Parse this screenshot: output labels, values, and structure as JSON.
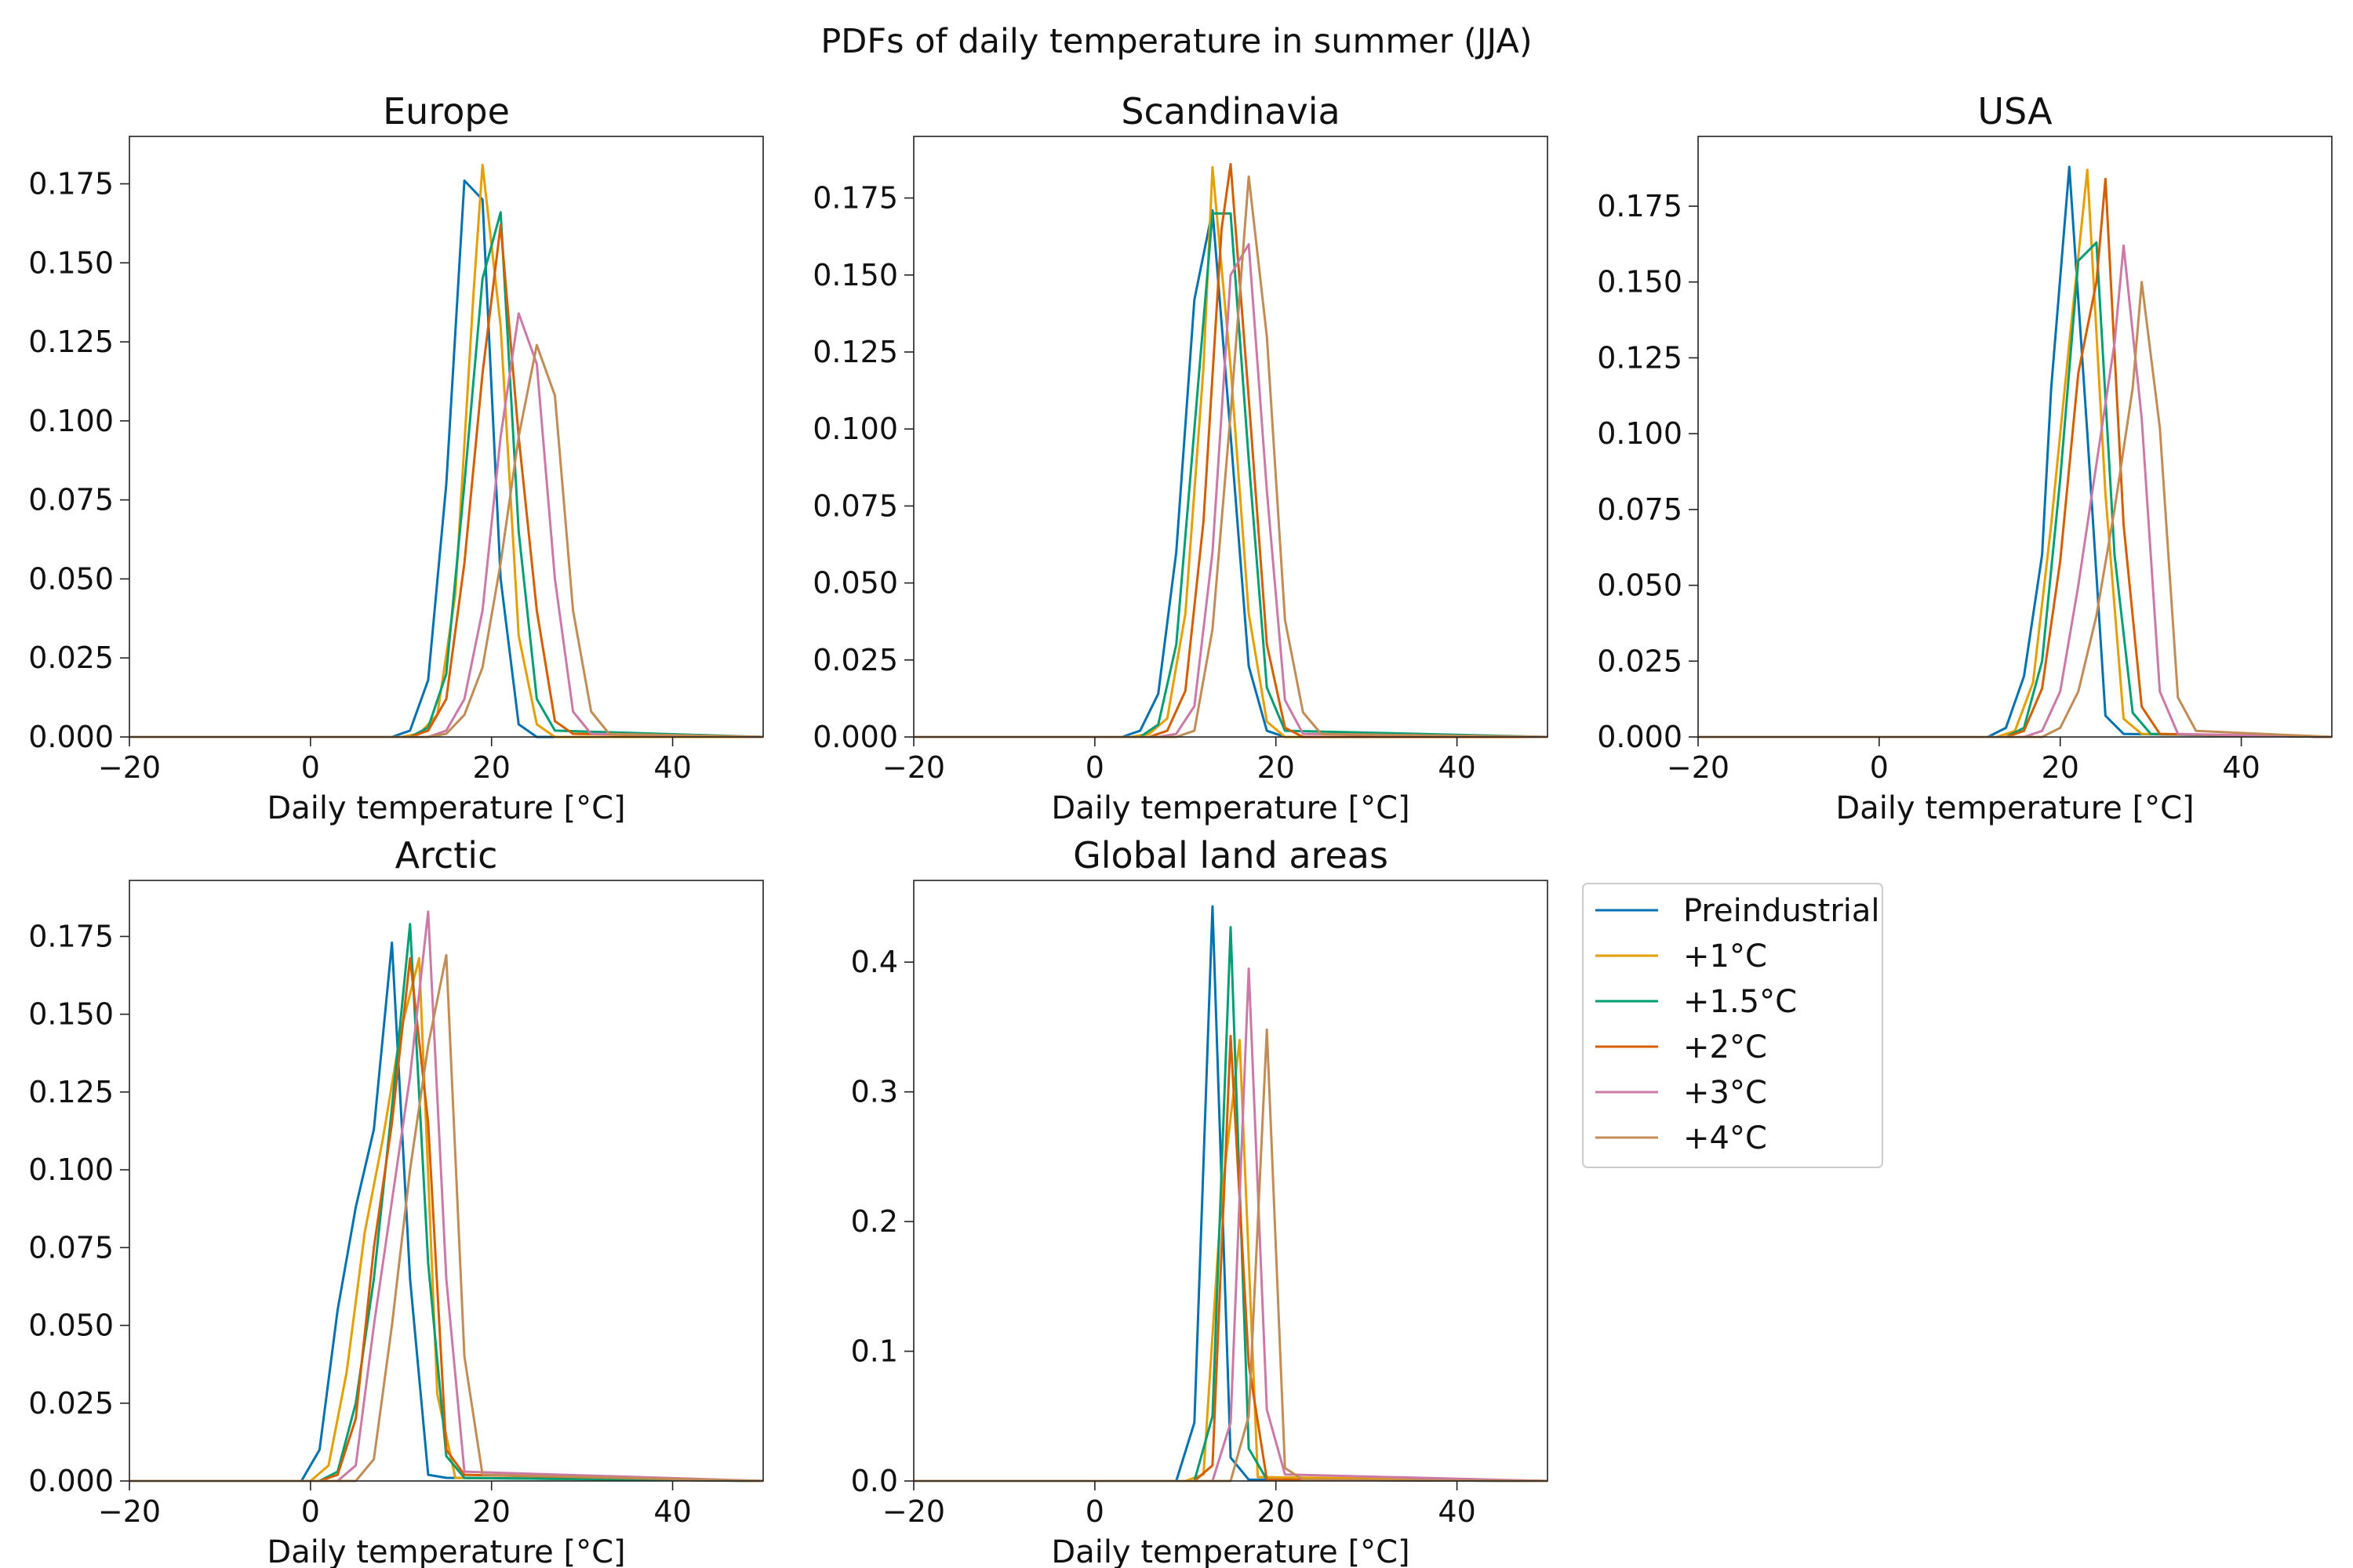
{
  "figure": {
    "title": "PDFs of daily temperature in summer (JJA)"
  },
  "legend": {
    "location": "right of Global land areas panel",
    "entries": [
      {
        "label": "Preindustrial",
        "color": "#0072b2"
      },
      {
        "label": "+1°C",
        "color": "#e69f00"
      },
      {
        "label": "+1.5°C",
        "color": "#009e73"
      },
      {
        "label": "+2°C",
        "color": "#d55e00"
      },
      {
        "label": "+3°C",
        "color": "#cc79a7"
      },
      {
        "label": "+4°C",
        "color": "#c18c55"
      }
    ]
  },
  "chart_data": [
    {
      "type": "line",
      "title": "Europe",
      "xlabel": "Daily temperature [°C]",
      "ylabel": "",
      "xlim": [
        -20,
        50
      ],
      "ylim": [
        0,
        0.19
      ],
      "xticks": [
        -20,
        0,
        20,
        40
      ],
      "yticks": [
        0.0,
        0.025,
        0.05,
        0.075,
        0.1,
        0.125,
        0.15,
        0.175
      ],
      "ytick_labels": [
        "0.000",
        "0.025",
        "0.050",
        "0.075",
        "0.100",
        "0.125",
        "0.150",
        "0.175"
      ],
      "series": [
        {
          "name": "Preindustrial",
          "x": [
            -20,
            9,
            11,
            13,
            15,
            17,
            19,
            21,
            23,
            25,
            50
          ],
          "y": [
            0,
            0,
            0.002,
            0.018,
            0.08,
            0.176,
            0.17,
            0.05,
            0.004,
            0,
            0
          ]
        },
        {
          "name": "+1°C",
          "x": [
            -20,
            10,
            12,
            14,
            16,
            18,
            19,
            21,
            23,
            25,
            27,
            50
          ],
          "y": [
            0,
            0,
            0.001,
            0.007,
            0.045,
            0.14,
            0.181,
            0.13,
            0.032,
            0.004,
            0,
            0
          ]
        },
        {
          "name": "+1.5°C",
          "x": [
            -20,
            11,
            13,
            15,
            17,
            19,
            21,
            23,
            25,
            27,
            50
          ],
          "y": [
            0,
            0,
            0.003,
            0.02,
            0.08,
            0.145,
            0.166,
            0.065,
            0.012,
            0.002,
            0
          ]
        },
        {
          "name": "+2°C",
          "x": [
            -20,
            11,
            13,
            15,
            17,
            19,
            21,
            23,
            25,
            27,
            29,
            50
          ],
          "y": [
            0,
            0,
            0.002,
            0.012,
            0.055,
            0.115,
            0.162,
            0.095,
            0.04,
            0.005,
            0.001,
            0
          ]
        },
        {
          "name": "+3°C",
          "x": [
            -20,
            13,
            15,
            17,
            19,
            21,
            23,
            25,
            27,
            29,
            31,
            50
          ],
          "y": [
            0,
            0,
            0.002,
            0.012,
            0.04,
            0.095,
            0.134,
            0.118,
            0.05,
            0.008,
            0.001,
            0
          ]
        },
        {
          "name": "+4°C",
          "x": [
            -20,
            13,
            15,
            17,
            19,
            21,
            23,
            25,
            27,
            29,
            31,
            33,
            50
          ],
          "y": [
            0,
            0,
            0.001,
            0.007,
            0.022,
            0.055,
            0.095,
            0.124,
            0.108,
            0.04,
            0.008,
            0.001,
            0
          ]
        }
      ]
    },
    {
      "type": "line",
      "title": "Scandinavia",
      "xlabel": "Daily temperature [°C]",
      "ylabel": "",
      "xlim": [
        -20,
        50
      ],
      "ylim": [
        0,
        0.195
      ],
      "xticks": [
        -20,
        0,
        20,
        40
      ],
      "yticks": [
        0.0,
        0.025,
        0.05,
        0.075,
        0.1,
        0.125,
        0.15,
        0.175
      ],
      "ytick_labels": [
        "0.000",
        "0.025",
        "0.050",
        "0.075",
        "0.100",
        "0.125",
        "0.150",
        "0.175"
      ],
      "series": [
        {
          "name": "Preindustrial",
          "x": [
            -20,
            3,
            5,
            7,
            9,
            11,
            13,
            15,
            17,
            19,
            21,
            50
          ],
          "y": [
            0,
            0,
            0.002,
            0.014,
            0.06,
            0.142,
            0.171,
            0.098,
            0.023,
            0.002,
            0,
            0
          ]
        },
        {
          "name": "+1°C",
          "x": [
            -20,
            4,
            6,
            8,
            10,
            12,
            13,
            15,
            17,
            19,
            21,
            50
          ],
          "y": [
            0,
            0,
            0.001,
            0.006,
            0.04,
            0.12,
            0.185,
            0.12,
            0.04,
            0.005,
            0,
            0
          ]
        },
        {
          "name": "+1.5°C",
          "x": [
            -20,
            5,
            7,
            9,
            11,
            13,
            15,
            17,
            19,
            21,
            50
          ],
          "y": [
            0,
            0,
            0.004,
            0.03,
            0.1,
            0.17,
            0.17,
            0.09,
            0.016,
            0.002,
            0
          ]
        },
        {
          "name": "+2°C",
          "x": [
            -20,
            6,
            8,
            10,
            12,
            14,
            15,
            17,
            19,
            21,
            23,
            50
          ],
          "y": [
            0,
            0,
            0.002,
            0.015,
            0.07,
            0.165,
            0.186,
            0.11,
            0.03,
            0.003,
            0,
            0
          ]
        },
        {
          "name": "+3°C",
          "x": [
            -20,
            7,
            9,
            11,
            13,
            15,
            17,
            19,
            21,
            23,
            50
          ],
          "y": [
            0,
            0,
            0.001,
            0.01,
            0.06,
            0.15,
            0.16,
            0.08,
            0.012,
            0.001,
            0
          ]
        },
        {
          "name": "+4°C",
          "x": [
            -20,
            9,
            11,
            13,
            15,
            17,
            19,
            21,
            23,
            25,
            50
          ],
          "y": [
            0,
            0,
            0.002,
            0.035,
            0.105,
            0.182,
            0.13,
            0.038,
            0.008,
            0.001,
            0
          ]
        }
      ]
    },
    {
      "type": "line",
      "title": "USA",
      "xlabel": "Daily temperature [°C]",
      "ylabel": "",
      "xlim": [
        -20,
        50
      ],
      "ylim": [
        0,
        0.198
      ],
      "xticks": [
        -20,
        0,
        20,
        40
      ],
      "yticks": [
        0.0,
        0.025,
        0.05,
        0.075,
        0.1,
        0.125,
        0.15,
        0.175
      ],
      "ytick_labels": [
        "0.000",
        "0.025",
        "0.050",
        "0.075",
        "0.100",
        "0.125",
        "0.150",
        "0.175"
      ],
      "series": [
        {
          "name": "Preindustrial",
          "x": [
            -20,
            12,
            14,
            16,
            18,
            19,
            21,
            23,
            25,
            27,
            50
          ],
          "y": [
            0,
            0,
            0.003,
            0.02,
            0.06,
            0.115,
            0.188,
            0.1,
            0.007,
            0.001,
            0
          ]
        },
        {
          "name": "+1°C",
          "x": [
            -20,
            13,
            15,
            17,
            19,
            21,
            23,
            25,
            27,
            29,
            50
          ],
          "y": [
            0,
            0,
            0.002,
            0.018,
            0.07,
            0.13,
            0.187,
            0.08,
            0.006,
            0.001,
            0
          ]
        },
        {
          "name": "+1.5°C",
          "x": [
            -20,
            14,
            16,
            18,
            20,
            22,
            24,
            26,
            28,
            30,
            50
          ],
          "y": [
            0,
            0,
            0.003,
            0.025,
            0.085,
            0.157,
            0.163,
            0.06,
            0.008,
            0.001,
            0
          ]
        },
        {
          "name": "+2°C",
          "x": [
            -20,
            14,
            16,
            18,
            20,
            22,
            24,
            25,
            27,
            29,
            31,
            50
          ],
          "y": [
            0,
            0,
            0.002,
            0.016,
            0.058,
            0.12,
            0.15,
            0.184,
            0.07,
            0.01,
            0.001,
            0
          ]
        },
        {
          "name": "+3°C",
          "x": [
            -20,
            16,
            18,
            20,
            22,
            24,
            26,
            27,
            29,
            31,
            33,
            50
          ],
          "y": [
            0,
            0,
            0.002,
            0.015,
            0.05,
            0.09,
            0.13,
            0.162,
            0.105,
            0.015,
            0.001,
            0
          ]
        },
        {
          "name": "+4°C",
          "x": [
            -20,
            18,
            20,
            22,
            24,
            26,
            28,
            29,
            31,
            33,
            35,
            50
          ],
          "y": [
            0,
            0,
            0.003,
            0.015,
            0.04,
            0.075,
            0.115,
            0.15,
            0.102,
            0.013,
            0.002,
            0
          ]
        }
      ]
    },
    {
      "type": "line",
      "title": "Arctic",
      "xlabel": "Daily temperature [°C]",
      "ylabel": "",
      "xlim": [
        -20,
        50
      ],
      "ylim": [
        0,
        0.193
      ],
      "xticks": [
        -20,
        0,
        20,
        40
      ],
      "yticks": [
        0.0,
        0.025,
        0.05,
        0.075,
        0.1,
        0.125,
        0.15,
        0.175
      ],
      "ytick_labels": [
        "0.000",
        "0.025",
        "0.050",
        "0.075",
        "0.100",
        "0.125",
        "0.150",
        "0.175"
      ],
      "series": [
        {
          "name": "Preindustrial",
          "x": [
            -20,
            -1,
            1,
            3,
            5,
            7,
            9,
            11,
            13,
            15,
            50
          ],
          "y": [
            0,
            0,
            0.01,
            0.055,
            0.088,
            0.113,
            0.173,
            0.065,
            0.002,
            0.001,
            0
          ]
        },
        {
          "name": "+1°C",
          "x": [
            -20,
            0,
            2,
            4,
            6,
            8,
            10,
            12,
            14,
            16,
            50
          ],
          "y": [
            0,
            0,
            0.005,
            0.035,
            0.08,
            0.11,
            0.145,
            0.168,
            0.028,
            0.001,
            0
          ]
        },
        {
          "name": "+1.5°C",
          "x": [
            -20,
            1,
            3,
            5,
            7,
            9,
            11,
            13,
            15,
            17,
            50
          ],
          "y": [
            0,
            0,
            0.003,
            0.025,
            0.065,
            0.12,
            0.179,
            0.07,
            0.008,
            0.001,
            0
          ]
        },
        {
          "name": "+2°C",
          "x": [
            -20,
            1,
            3,
            5,
            7,
            9,
            11,
            13,
            15,
            17,
            50
          ],
          "y": [
            0,
            0,
            0.002,
            0.02,
            0.075,
            0.115,
            0.168,
            0.115,
            0.01,
            0.002,
            0
          ]
        },
        {
          "name": "+3°C",
          "x": [
            -20,
            3,
            5,
            7,
            9,
            11,
            13,
            15,
            17,
            50
          ],
          "y": [
            0,
            0,
            0.005,
            0.05,
            0.09,
            0.13,
            0.183,
            0.065,
            0.003,
            0
          ]
        },
        {
          "name": "+4°C",
          "x": [
            -20,
            5,
            7,
            9,
            11,
            13,
            15,
            17,
            19,
            50
          ],
          "y": [
            0,
            0,
            0.007,
            0.05,
            0.1,
            0.14,
            0.169,
            0.04,
            0.002,
            0
          ]
        }
      ]
    },
    {
      "type": "line",
      "title": "Global land areas",
      "xlabel": "Daily temperature [°C]",
      "ylabel": "",
      "xlim": [
        -20,
        50
      ],
      "ylim": [
        0,
        0.463
      ],
      "xticks": [
        -20,
        0,
        20,
        40
      ],
      "yticks": [
        0.0,
        0.1,
        0.2,
        0.3,
        0.4
      ],
      "ytick_labels": [
        "0.0",
        "0.1",
        "0.2",
        "0.3",
        "0.4"
      ],
      "series": [
        {
          "name": "Preindustrial",
          "x": [
            -20,
            9,
            11,
            13,
            15,
            17,
            50
          ],
          "y": [
            0,
            0,
            0.045,
            0.443,
            0.018,
            0.001,
            0
          ]
        },
        {
          "name": "+1°C",
          "x": [
            -20,
            10,
            12,
            14,
            16,
            18,
            50
          ],
          "y": [
            0,
            0,
            0.005,
            0.22,
            0.34,
            0.003,
            0
          ]
        },
        {
          "name": "+1.5°C",
          "x": [
            -20,
            11,
            13,
            15,
            17,
            19,
            50
          ],
          "y": [
            0,
            0,
            0.05,
            0.427,
            0.025,
            0.001,
            0
          ]
        },
        {
          "name": "+2°C",
          "x": [
            -20,
            11,
            13,
            15,
            17,
            19,
            50
          ],
          "y": [
            0,
            0,
            0.012,
            0.343,
            0.09,
            0.001,
            0
          ]
        },
        {
          "name": "+3°C",
          "x": [
            -20,
            13,
            15,
            17,
            19,
            21,
            50
          ],
          "y": [
            0,
            0,
            0.045,
            0.395,
            0.055,
            0.005,
            0
          ]
        },
        {
          "name": "+4°C",
          "x": [
            -20,
            15,
            17,
            19,
            21,
            23,
            50
          ],
          "y": [
            0,
            0,
            0.05,
            0.348,
            0.01,
            0.001,
            0
          ]
        }
      ]
    }
  ]
}
